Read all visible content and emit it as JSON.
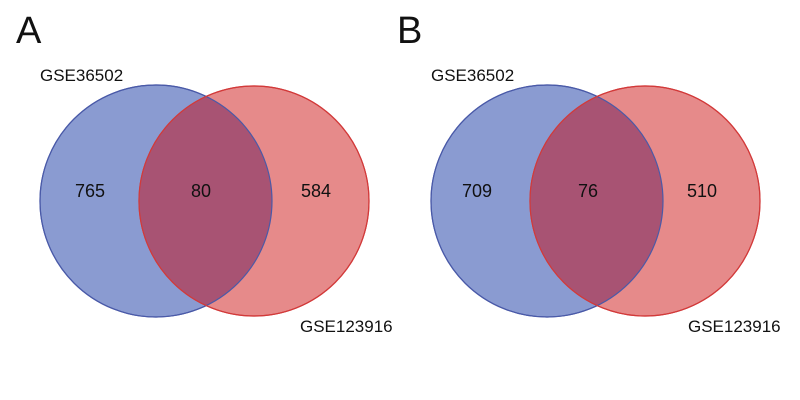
{
  "panels": [
    {
      "letter": "A",
      "set_left": {
        "label": "GSE36502",
        "only_count": "765",
        "color": "#7383c4"
      },
      "set_right": {
        "label": "GSE123916",
        "only_count": "584",
        "color": "#e06a6a"
      },
      "overlap_count": "80",
      "overlap_color": "#a5526f"
    },
    {
      "letter": "B",
      "set_left": {
        "label": "GSE36502",
        "only_count": "709",
        "color": "#7383c4"
      },
      "set_right": {
        "label": "GSE123916",
        "only_count": "510",
        "color": "#e06a6a"
      },
      "overlap_count": "76",
      "overlap_color": "#a5526f"
    }
  ]
}
